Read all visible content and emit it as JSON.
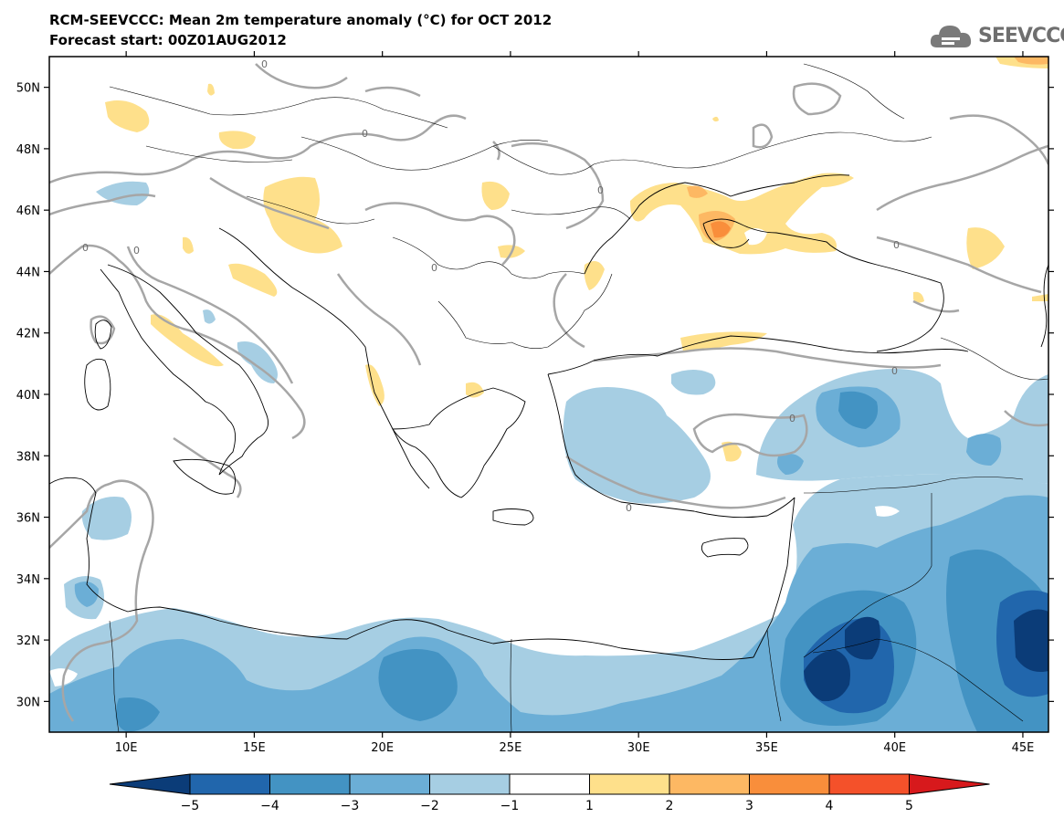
{
  "header": {
    "title_line1": "RCM-SEEVCCC: Mean 2m temperature anomaly (°C) for OCT 2012",
    "title_line2": "Forecast start: 00Z01AUG2012",
    "logo_text": "SEEVCCC"
  },
  "map": {
    "lat_labels": [
      "50N",
      "48N",
      "46N",
      "44N",
      "42N",
      "40N",
      "38N",
      "36N",
      "34N",
      "32N",
      "30N"
    ],
    "lat_values": [
      50,
      48,
      46,
      44,
      42,
      40,
      38,
      36,
      34,
      32,
      30
    ],
    "lon_labels": [
      "10E",
      "15E",
      "20E",
      "25E",
      "30E",
      "35E",
      "40E",
      "45E"
    ],
    "lon_values": [
      10,
      15,
      20,
      25,
      30,
      35,
      40,
      45
    ],
    "lon_range": [
      7,
      46
    ],
    "lat_range": [
      29,
      51
    ],
    "contour_label": "0",
    "zero_contour_color": "#a6a6a6"
  },
  "colorbar": {
    "tick_labels": [
      "−5",
      "−4",
      "−3",
      "−2",
      "−1",
      "1",
      "2",
      "3",
      "4",
      "5"
    ],
    "colors": [
      "#0b3c78",
      "#2166ac",
      "#4393c3",
      "#6baed6",
      "#a6cee3",
      "#ffffff",
      "#fee08b",
      "#fdb863",
      "#f98e3b",
      "#f4512a",
      "#d7191c"
    ]
  }
}
